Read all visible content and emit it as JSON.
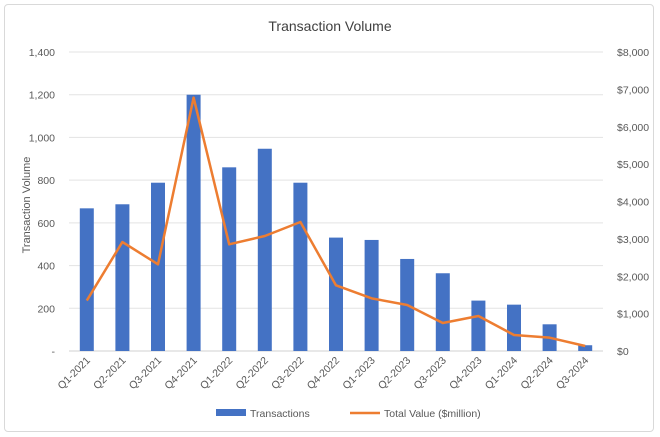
{
  "chart_data": {
    "type": "bar+line",
    "title": "Transaction Volume",
    "ylabel": "Transaction Volume",
    "y2label": "",
    "categories": [
      "Q1-2021",
      "Q2-2021",
      "Q3-2021",
      "Q4-2021",
      "Q1-2022",
      "Q2-2022",
      "Q3-2022",
      "Q4-2022",
      "Q1-2023",
      "Q2-2023",
      "Q3-2023",
      "Q4-2023",
      "Q1-2024",
      "Q2-2024",
      "Q3-2024"
    ],
    "series": [
      {
        "name": "Transactions",
        "type": "bar",
        "axis": "left",
        "color": "#4472C4",
        "values": [
          668,
          687,
          788,
          1200,
          860,
          947,
          788,
          531,
          520,
          431,
          364,
          236,
          217,
          125,
          27
        ]
      },
      {
        "name": "Total Value ($million)",
        "type": "line",
        "axis": "right",
        "color": "#ED7D31",
        "values": [
          1350,
          2916,
          2319,
          6780,
          2854,
          3077,
          3452,
          1757,
          1409,
          1231,
          749,
          936,
          428,
          357,
          134
        ]
      }
    ],
    "ylim": [
      0,
      1400
    ],
    "y2lim": [
      0,
      8000
    ],
    "yticks": [
      "-",
      "200",
      "400",
      "600",
      "800",
      "1,000",
      "1,200",
      "1,400"
    ],
    "y2ticks": [
      "$0",
      "$1,000",
      "$2,000",
      "$3,000",
      "$4,000",
      "$5,000",
      "$6,000",
      "$7,000",
      "$8,000"
    ],
    "grid": true,
    "legend": "bottom"
  }
}
